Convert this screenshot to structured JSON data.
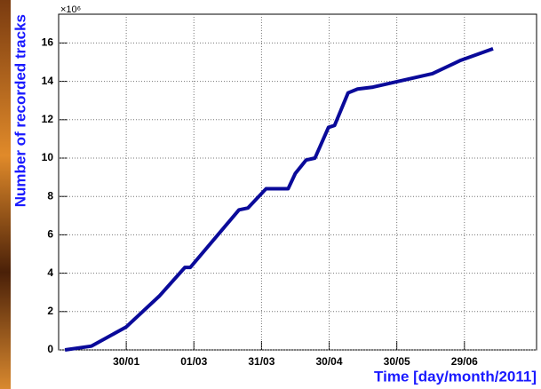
{
  "chart_data": {
    "type": "line",
    "x_label": "Time [day/month/2011]",
    "y_label": "Number of recorded tracks",
    "y_multiplier": "×10⁶",
    "x": [
      2.8,
      14.6,
      30,
      44.6,
      56,
      58.4,
      80,
      84,
      92,
      101.8,
      105,
      109.8,
      113.7,
      119.7,
      122.4,
      128.4,
      132.6,
      139.4,
      165.8,
      178.4,
      192.7
    ],
    "values": [
      0,
      0.2,
      1.2,
      2.8,
      4.3,
      4.3,
      7.3,
      7.4,
      8.4,
      8.4,
      9.2,
      9.9,
      10,
      11.6,
      11.7,
      13.4,
      13.6,
      13.7,
      14.4,
      15.1,
      15.7
    ],
    "color": "#0a0a9a",
    "xlim": [
      0,
      212
    ],
    "ylim": [
      0,
      17.5
    ],
    "xticks": [
      {
        "value": 30,
        "label": "30/01"
      },
      {
        "value": 60,
        "label": "01/03"
      },
      {
        "value": 90,
        "label": "31/03"
      },
      {
        "value": 120,
        "label": "30/04"
      },
      {
        "value": 150,
        "label": "30/05"
      },
      {
        "value": 180,
        "label": "29/06"
      }
    ],
    "yticks": [
      0,
      2,
      4,
      6,
      8,
      10,
      12,
      14,
      16
    ],
    "grid": true
  }
}
